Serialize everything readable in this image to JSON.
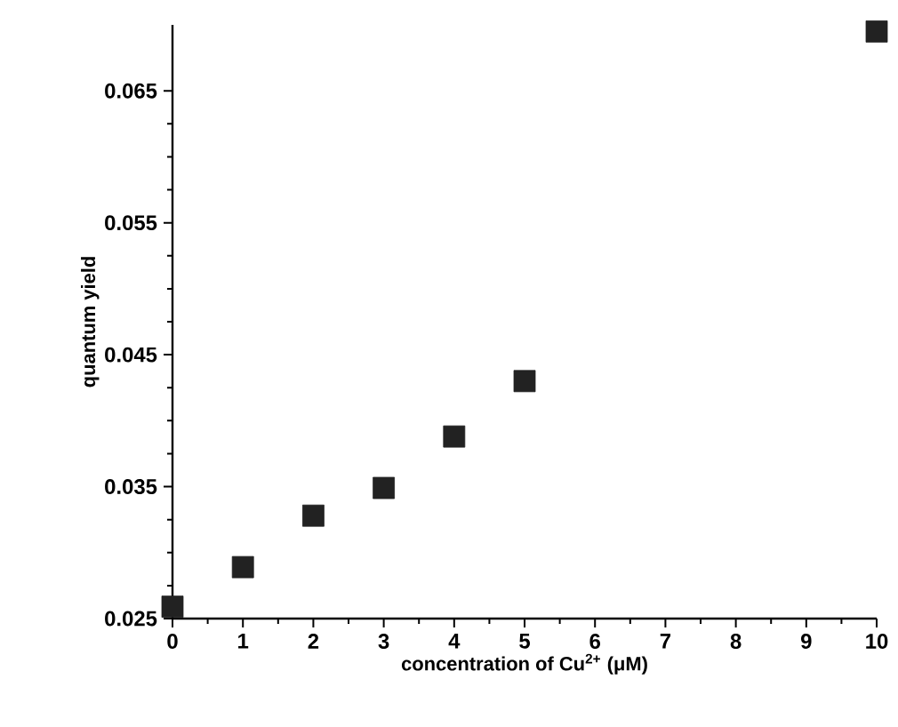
{
  "chart_data": {
    "type": "scatter",
    "xlabel": "concentration of Cu$^{2+}$ (μM)",
    "ylabel": "quantum yield",
    "x": [
      0,
      1,
      2,
      3,
      4,
      5,
      10
    ],
    "values": [
      0.0259,
      0.0289,
      0.0328,
      0.0349,
      0.0388,
      0.043,
      0.0695
    ],
    "color": "#222222",
    "marker": "square",
    "xlim": [
      0,
      10
    ],
    "ylim": [
      0.025,
      0.07
    ],
    "xticks": [
      0,
      1,
      2,
      3,
      4,
      5,
      6,
      7,
      8,
      9,
      10
    ],
    "yticks": [
      0.025,
      0.035,
      0.045,
      0.055,
      0.065
    ]
  }
}
